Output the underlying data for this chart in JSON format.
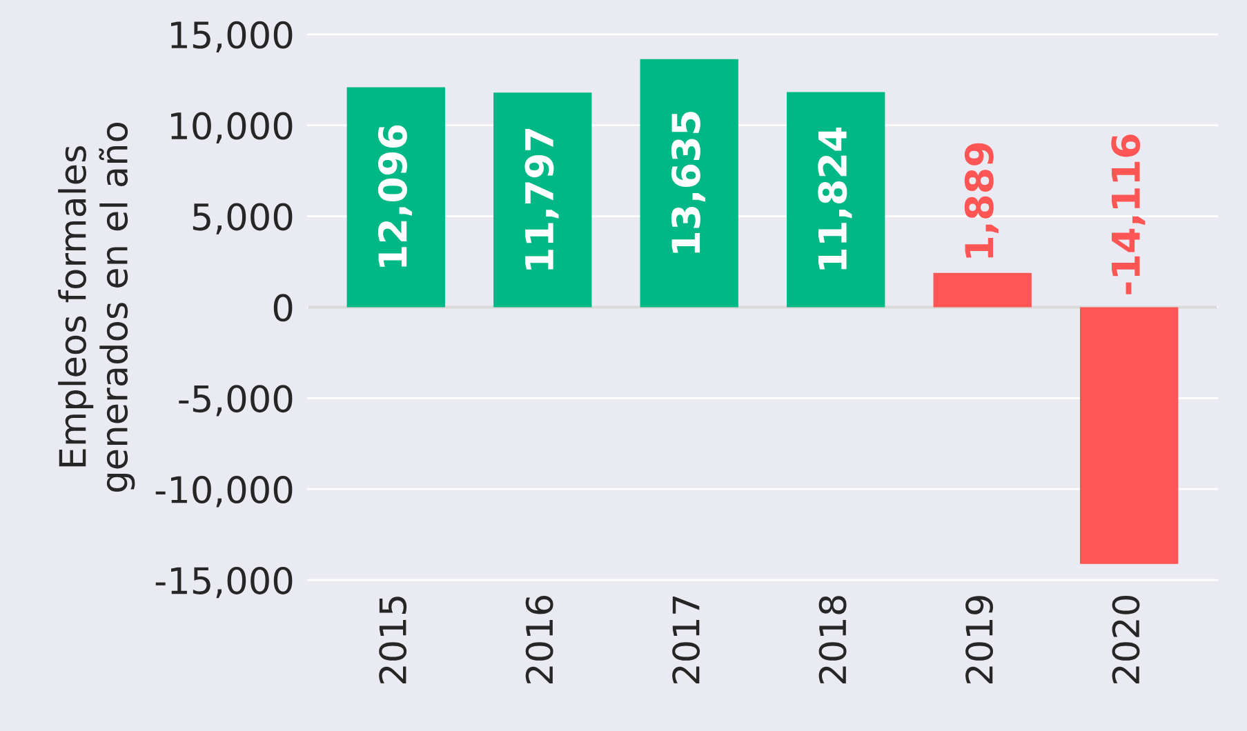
{
  "chart_data": {
    "type": "bar",
    "ylabel": "Empleos formales\ngenerados en el año",
    "categories": [
      "2015",
      "2016",
      "2017",
      "2018",
      "2019",
      "2020"
    ],
    "values": [
      12096,
      11797,
      13635,
      11824,
      1889,
      -14116
    ],
    "colors": [
      "#00b886",
      "#00b886",
      "#00b886",
      "#00b886",
      "#ff5555",
      "#ff5555"
    ],
    "value_labels": [
      "12,096",
      "11,797",
      "13,635",
      "11,824",
      "1,889",
      "-14,116"
    ],
    "ylim": [
      -15000,
      15000
    ],
    "yticks": [
      {
        "value": -15000,
        "label": "-15,000"
      },
      {
        "value": -10000,
        "label": "-10,000"
      },
      {
        "value": -5000,
        "label": "-5,000"
      },
      0,
      {
        "value": 5000,
        "label": "5,000"
      },
      {
        "value": 10000,
        "label": "10,000"
      },
      {
        "value": 15000,
        "label": "15,000"
      }
    ],
    "grid": "y",
    "ref_lines": [
      {
        "axis": "y",
        "value": 0,
        "color": "#d9d9d9"
      }
    ]
  }
}
